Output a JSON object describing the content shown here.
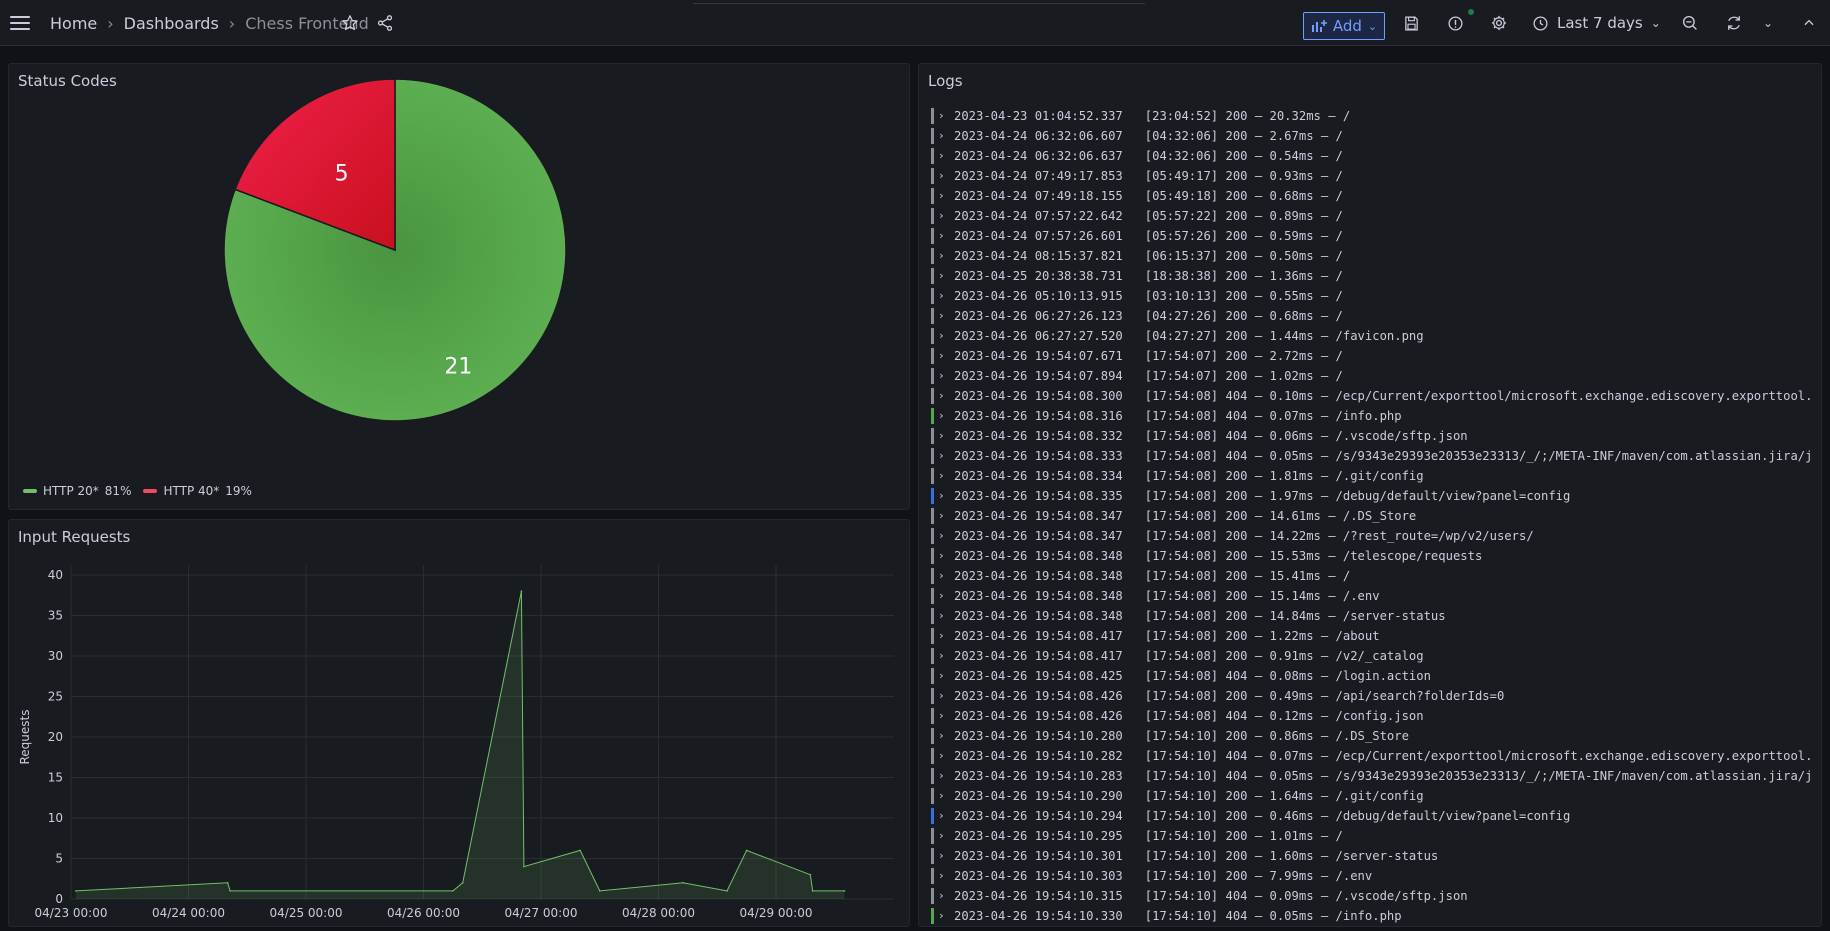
{
  "header": {
    "breadcrumbs": [
      "Home",
      "Dashboards",
      "Chess Frontend"
    ],
    "add_label": "Add",
    "time_range": "Last 7 days"
  },
  "panels": {
    "status_title": "Status Codes",
    "input_title": "Input Requests",
    "logs_title": "Logs"
  },
  "colors": {
    "green": "#56a64b",
    "red": "#e02f44",
    "accent": "#6e9fff"
  },
  "legend": [
    {
      "label": "HTTP 20*",
      "pct": "81%",
      "color": "#73bf69"
    },
    {
      "label": "HTTP 40*",
      "pct": "19%",
      "color": "#f2495c"
    }
  ],
  "chart_data": [
    {
      "type": "pie",
      "title": "Status Codes",
      "labels": [
        "HTTP 20*",
        "HTTP 40*"
      ],
      "values": [
        21,
        5
      ],
      "percent": [
        "81%",
        "19%"
      ]
    },
    {
      "type": "area",
      "title": "Input Requests",
      "ylabel": "Requests",
      "ylim": [
        0,
        40
      ],
      "yticks": [
        0,
        5,
        10,
        15,
        20,
        25,
        30,
        35,
        40
      ],
      "xticks": [
        "04/23 00:00",
        "04/24 00:00",
        "04/25 00:00",
        "04/26 00:00",
        "04/27 00:00",
        "04/28 00:00",
        "04/29 00:00"
      ],
      "grid": true,
      "series": [
        {
          "x": [
            "2023-04-23 01:00",
            "2023-04-24 08:00",
            "2023-04-24 08:30",
            "2023-04-26 06:00",
            "2023-04-26 08:00",
            "2023-04-26 20:00",
            "2023-04-26 20:30",
            "2023-04-27 08:00",
            "2023-04-27 12:00",
            "2023-04-28 05:00",
            "2023-04-28 14:00",
            "2023-04-28 18:00",
            "2023-04-29 07:00",
            "2023-04-29 07:30",
            "2023-04-29 14:00"
          ],
          "y": [
            1,
            2,
            1,
            1,
            2,
            38,
            4,
            6,
            1,
            2,
            1,
            6,
            3,
            1,
            1
          ]
        }
      ]
    }
  ],
  "logs": [
    {
      "ts": "2023-04-23 01:04:52.337",
      "msg": "[23:04:52] 200 — 20.32ms — /",
      "bar": "#8e8e99"
    },
    {
      "ts": "2023-04-24 06:32:06.607",
      "msg": "[04:32:06] 200 — 2.67ms — /",
      "bar": "#8e8e99"
    },
    {
      "ts": "2023-04-24 06:32:06.637",
      "msg": "[04:32:06] 200 — 0.54ms — /",
      "bar": "#8e8e99"
    },
    {
      "ts": "2023-04-24 07:49:17.853",
      "msg": "[05:49:17] 200 — 0.93ms — /",
      "bar": "#8e8e99"
    },
    {
      "ts": "2023-04-24 07:49:18.155",
      "msg": "[05:49:18] 200 — 0.68ms — /",
      "bar": "#8e8e99"
    },
    {
      "ts": "2023-04-24 07:57:22.642",
      "msg": "[05:57:22] 200 — 0.89ms — /",
      "bar": "#8e8e99"
    },
    {
      "ts": "2023-04-24 07:57:26.601",
      "msg": "[05:57:26] 200 — 0.59ms — /",
      "bar": "#8e8e99"
    },
    {
      "ts": "2023-04-24 08:15:37.821",
      "msg": "[06:15:37] 200 — 0.50ms — /",
      "bar": "#8e8e99"
    },
    {
      "ts": "2023-04-25 20:38:38.731",
      "msg": "[18:38:38] 200 — 1.36ms — /",
      "bar": "#8e8e99"
    },
    {
      "ts": "2023-04-26 05:10:13.915",
      "msg": "[03:10:13] 200 — 0.55ms — /",
      "bar": "#8e8e99"
    },
    {
      "ts": "2023-04-26 06:27:26.123",
      "msg": "[04:27:26] 200 — 0.68ms — /",
      "bar": "#8e8e99"
    },
    {
      "ts": "2023-04-26 06:27:27.520",
      "msg": "[04:27:27] 200 — 1.44ms — /favicon.png",
      "bar": "#8e8e99"
    },
    {
      "ts": "2023-04-26 19:54:07.671",
      "msg": "[17:54:07] 200 — 2.72ms — /",
      "bar": "#8e8e99"
    },
    {
      "ts": "2023-04-26 19:54:07.894",
      "msg": "[17:54:07] 200 — 1.02ms — /",
      "bar": "#8e8e99"
    },
    {
      "ts": "2023-04-26 19:54:08.300",
      "msg": "[17:54:08] 404 — 0.10ms — /ecp/Current/exporttool/microsoft.exchange.ediscovery.exporttool.",
      "bar": "#8e8e99"
    },
    {
      "ts": "2023-04-26 19:54:08.316",
      "msg": "[17:54:08] 404 — 0.07ms — /info.php",
      "bar": "#56a64b"
    },
    {
      "ts": "2023-04-26 19:54:08.332",
      "msg": "[17:54:08] 404 — 0.06ms — /.vscode/sftp.json",
      "bar": "#8e8e99"
    },
    {
      "ts": "2023-04-26 19:54:08.333",
      "msg": "[17:54:08] 404 — 0.05ms — /s/9343e29393e20353e23313/_/;/META-INF/maven/com.atlassian.jira/j",
      "bar": "#8e8e99"
    },
    {
      "ts": "2023-04-26 19:54:08.334",
      "msg": "[17:54:08] 200 — 1.81ms — /.git/config",
      "bar": "#8e8e99"
    },
    {
      "ts": "2023-04-26 19:54:08.335",
      "msg": "[17:54:08] 200 — 1.97ms — /debug/default/view?panel=config",
      "bar": "#3274d9"
    },
    {
      "ts": "2023-04-26 19:54:08.347",
      "msg": "[17:54:08] 200 — 14.61ms — /.DS_Store",
      "bar": "#8e8e99"
    },
    {
      "ts": "2023-04-26 19:54:08.347",
      "msg": "[17:54:08] 200 — 14.22ms — /?rest_route=/wp/v2/users/",
      "bar": "#8e8e99"
    },
    {
      "ts": "2023-04-26 19:54:08.348",
      "msg": "[17:54:08] 200 — 15.53ms — /telescope/requests",
      "bar": "#8e8e99"
    },
    {
      "ts": "2023-04-26 19:54:08.348",
      "msg": "[17:54:08] 200 — 15.41ms — /",
      "bar": "#8e8e99"
    },
    {
      "ts": "2023-04-26 19:54:08.348",
      "msg": "[17:54:08] 200 — 15.14ms — /.env",
      "bar": "#8e8e99"
    },
    {
      "ts": "2023-04-26 19:54:08.348",
      "msg": "[17:54:08] 200 — 14.84ms — /server-status",
      "bar": "#8e8e99"
    },
    {
      "ts": "2023-04-26 19:54:08.417",
      "msg": "[17:54:08] 200 — 1.22ms — /about",
      "bar": "#8e8e99"
    },
    {
      "ts": "2023-04-26 19:54:08.417",
      "msg": "[17:54:08] 200 — 0.91ms — /v2/_catalog",
      "bar": "#8e8e99"
    },
    {
      "ts": "2023-04-26 19:54:08.425",
      "msg": "[17:54:08] 404 — 0.08ms — /login.action",
      "bar": "#8e8e99"
    },
    {
      "ts": "2023-04-26 19:54:08.426",
      "msg": "[17:54:08] 200 — 0.49ms — /api/search?folderIds=0",
      "bar": "#8e8e99"
    },
    {
      "ts": "2023-04-26 19:54:08.426",
      "msg": "[17:54:08] 404 — 0.12ms — /config.json",
      "bar": "#8e8e99"
    },
    {
      "ts": "2023-04-26 19:54:10.280",
      "msg": "[17:54:10] 200 — 0.86ms — /.DS_Store",
      "bar": "#8e8e99"
    },
    {
      "ts": "2023-04-26 19:54:10.282",
      "msg": "[17:54:10] 404 — 0.07ms — /ecp/Current/exporttool/microsoft.exchange.ediscovery.exporttool.",
      "bar": "#8e8e99"
    },
    {
      "ts": "2023-04-26 19:54:10.283",
      "msg": "[17:54:10] 404 — 0.05ms — /s/9343e29393e20353e23313/_/;/META-INF/maven/com.atlassian.jira/j",
      "bar": "#8e8e99"
    },
    {
      "ts": "2023-04-26 19:54:10.290",
      "msg": "[17:54:10] 200 — 1.64ms — /.git/config",
      "bar": "#8e8e99"
    },
    {
      "ts": "2023-04-26 19:54:10.294",
      "msg": "[17:54:10] 200 — 0.46ms — /debug/default/view?panel=config",
      "bar": "#3274d9"
    },
    {
      "ts": "2023-04-26 19:54:10.295",
      "msg": "[17:54:10] 200 — 1.01ms — /",
      "bar": "#8e8e99"
    },
    {
      "ts": "2023-04-26 19:54:10.301",
      "msg": "[17:54:10] 200 — 1.60ms — /server-status",
      "bar": "#8e8e99"
    },
    {
      "ts": "2023-04-26 19:54:10.303",
      "msg": "[17:54:10] 200 — 7.99ms — /.env",
      "bar": "#8e8e99"
    },
    {
      "ts": "2023-04-26 19:54:10.315",
      "msg": "[17:54:10] 404 — 0.09ms — /.vscode/sftp.json",
      "bar": "#8e8e99"
    },
    {
      "ts": "2023-04-26 19:54:10.330",
      "msg": "[17:54:10] 404 — 0.05ms — /info.php",
      "bar": "#56a64b"
    }
  ]
}
